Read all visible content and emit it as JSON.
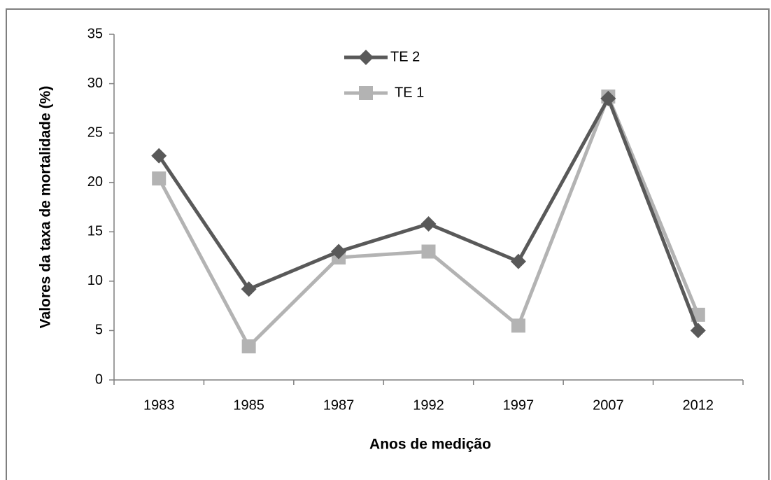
{
  "chart_data": {
    "type": "line",
    "x_label": "Anos de medição",
    "y_label": "Valores da taxa de mortalidade (%)",
    "categories": [
      "1983",
      "1985",
      "1987",
      "1992",
      "1997",
      "2007",
      "2012"
    ],
    "series": [
      {
        "name": "TE 2",
        "color": "#595959",
        "marker": "diamond",
        "values": [
          22.7,
          9.2,
          13.0,
          15.8,
          12.0,
          28.5,
          5.0
        ]
      },
      {
        "name": "TE 1",
        "color": "#b3b3b3",
        "marker": "square",
        "values": [
          20.4,
          3.4,
          12.4,
          13.0,
          5.5,
          28.7,
          6.6
        ]
      }
    ],
    "ylim": [
      0,
      35
    ],
    "yticks": [
      0,
      5,
      10,
      15,
      20,
      25,
      30,
      35
    ],
    "grid": false,
    "legend": "top"
  }
}
